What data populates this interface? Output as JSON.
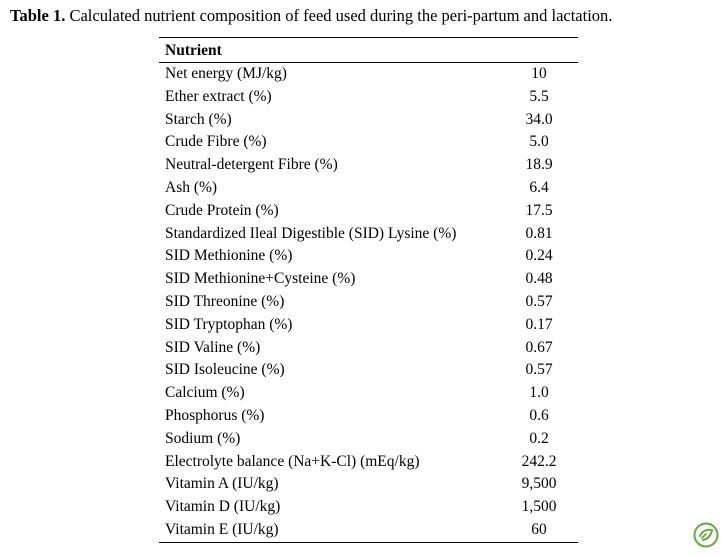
{
  "caption": {
    "label": "Table 1.",
    "text": " Calculated nutrient composition of feed used during the peri-partum and lactation."
  },
  "table": {
    "header": "Nutrient",
    "rows": [
      {
        "nutrient": "Net energy (MJ/kg)",
        "value": "10"
      },
      {
        "nutrient": "Ether extract (%)",
        "value": "5.5"
      },
      {
        "nutrient": "Starch (%)",
        "value": "34.0"
      },
      {
        "nutrient": "Crude Fibre (%)",
        "value": "5.0"
      },
      {
        "nutrient": "Neutral-detergent Fibre (%)",
        "value": "18.9"
      },
      {
        "nutrient": "Ash (%)",
        "value": "6.4"
      },
      {
        "nutrient": "Crude Protein (%)",
        "value": "17.5"
      },
      {
        "nutrient": "Standardized Ileal Digestible (SID) Lysine (%)",
        "value": "0.81"
      },
      {
        "nutrient": "SID Methionine (%)",
        "value": "0.24"
      },
      {
        "nutrient": "SID Methionine+Cysteine (%)",
        "value": "0.48"
      },
      {
        "nutrient": "SID Threonine (%)",
        "value": "0.57"
      },
      {
        "nutrient": "SID Tryptophan (%)",
        "value": "0.17"
      },
      {
        "nutrient": "SID Valine (%)",
        "value": "0.67"
      },
      {
        "nutrient": "SID Isoleucine (%)",
        "value": "0.57"
      },
      {
        "nutrient": "Calcium (%)",
        "value": "1.0"
      },
      {
        "nutrient": "Phosphorus (%)",
        "value": "0.6"
      },
      {
        "nutrient": "Sodium (%)",
        "value": "0.2"
      },
      {
        "nutrient": "Electrolyte balance (Na+K-Cl) (mEq/kg)",
        "value": "242.2"
      },
      {
        "nutrient": "Vitamin A (IU/kg)",
        "value": "9,500"
      },
      {
        "nutrient": "Vitamin D (IU/kg)",
        "value": "1,500"
      },
      {
        "nutrient": "Vitamin E (IU/kg)",
        "value": "60"
      }
    ]
  },
  "colors": {
    "badge": "#6aa843"
  },
  "icons": {
    "badge": "check-leaf-icon"
  }
}
